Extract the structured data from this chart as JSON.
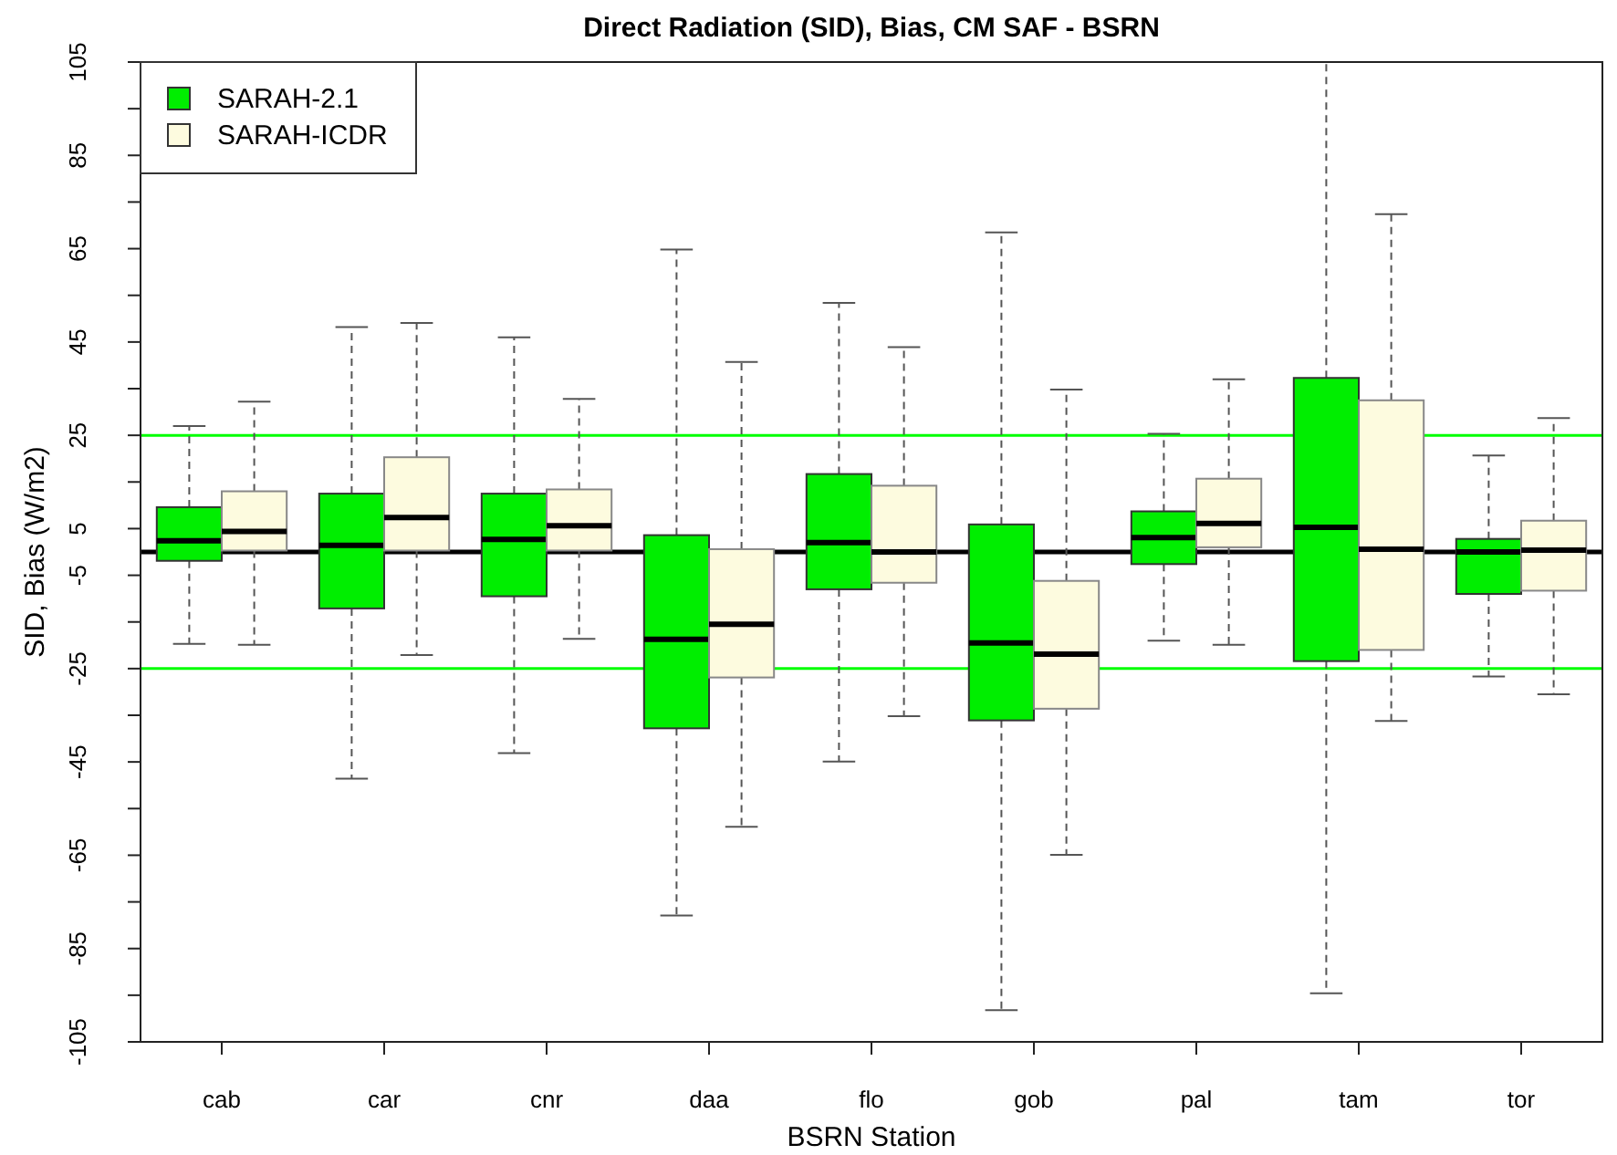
{
  "chart_data": {
    "type": "box",
    "title": "Direct Radiation (SID), Bias, CM SAF - BSRN",
    "xlabel": "BSRN Station",
    "ylabel": "SID, Bias (W/m2)",
    "categories": [
      "cab",
      "car",
      "cnr",
      "daa",
      "flo",
      "gob",
      "pal",
      "tam",
      "tor"
    ],
    "ylim": [
      -105,
      105
    ],
    "yticks": [
      -105,
      {
        "value": -95,
        "label": null
      },
      -85,
      {
        "value": -75,
        "label": null
      },
      -65,
      {
        "value": -55,
        "label": null
      },
      -45,
      {
        "value": -35,
        "label": null
      },
      -25,
      {
        "value": -15,
        "label": null
      },
      -5,
      {
        "value": 5,
        "label": "5"
      },
      {
        "value": 15,
        "label": null
      },
      25,
      {
        "value": 35,
        "label": null
      },
      45,
      {
        "value": 55,
        "label": null
      },
      65,
      {
        "value": 75,
        "label": null
      },
      85,
      {
        "value": 95,
        "label": null
      },
      105
    ],
    "grid": false,
    "legend": "top left",
    "ref_lines": [
      {
        "axis": "y",
        "value": 0,
        "color": "#000000"
      },
      {
        "axis": "y",
        "value": 25,
        "color": "#00ff00"
      },
      {
        "axis": "y",
        "value": -25,
        "color": "#00ff00"
      }
    ],
    "series": [
      {
        "name": "SARAH-2.1",
        "color": "#00ee00",
        "boxes": [
          {
            "low": -19.7,
            "q1": -1.9,
            "median": 2.4,
            "q3": 9.6,
            "high": 27
          },
          {
            "low": -48.6,
            "q1": -12.1,
            "median": 1.4,
            "q3": 12.5,
            "high": 48.2
          },
          {
            "low": -43.1,
            "q1": -9.5,
            "median": 2.7,
            "q3": 12.5,
            "high": 46
          },
          {
            "low": -77.9,
            "q1": -37.8,
            "median": -18.7,
            "q3": 3.6,
            "high": 64.8
          },
          {
            "low": -44.9,
            "q1": -8,
            "median": 2,
            "q3": 16.7,
            "high": 53.4
          },
          {
            "low": -98.2,
            "q1": -36.1,
            "median": -19.5,
            "q3": 5.9,
            "high": 68.5
          },
          {
            "low": -19,
            "q1": -2.6,
            "median": 3.1,
            "q3": 8.7,
            "high": 25.3
          },
          {
            "low": -94.6,
            "q1": -23.4,
            "median": 5.3,
            "q3": 37.3,
            "high": 105
          },
          {
            "low": -26.7,
            "q1": -9,
            "median": 0,
            "q3": 2.8,
            "high": 20.7
          }
        ]
      },
      {
        "name": "SARAH-ICDR",
        "color": "#fdfbdf",
        "boxes": [
          {
            "low": -19.9,
            "q1": 0.3,
            "median": 4.4,
            "q3": 13,
            "high": 32.2
          },
          {
            "low": -22.1,
            "q1": 0.3,
            "median": 7.4,
            "q3": 20.3,
            "high": 49.1
          },
          {
            "low": -18.6,
            "q1": 0.3,
            "median": 5.6,
            "q3": 13.4,
            "high": 32.8
          },
          {
            "low": -58.9,
            "q1": -26.9,
            "median": -15.5,
            "q3": 0.6,
            "high": 40.7
          },
          {
            "low": -35.2,
            "q1": -6.6,
            "median": 0,
            "q3": 14.2,
            "high": 43.9
          },
          {
            "low": -64.9,
            "q1": -33.6,
            "median": -21.9,
            "q3": -6.2,
            "high": 34.8
          },
          {
            "low": -19.9,
            "q1": 1,
            "median": 6.1,
            "q3": 15.7,
            "high": 37
          },
          {
            "low": -36.2,
            "q1": -21,
            "median": 0.6,
            "q3": 32.5,
            "high": 72.4
          },
          {
            "low": -30.5,
            "q1": -8.3,
            "median": 0.4,
            "q3": 6.7,
            "high": 28.7
          }
        ]
      }
    ]
  }
}
